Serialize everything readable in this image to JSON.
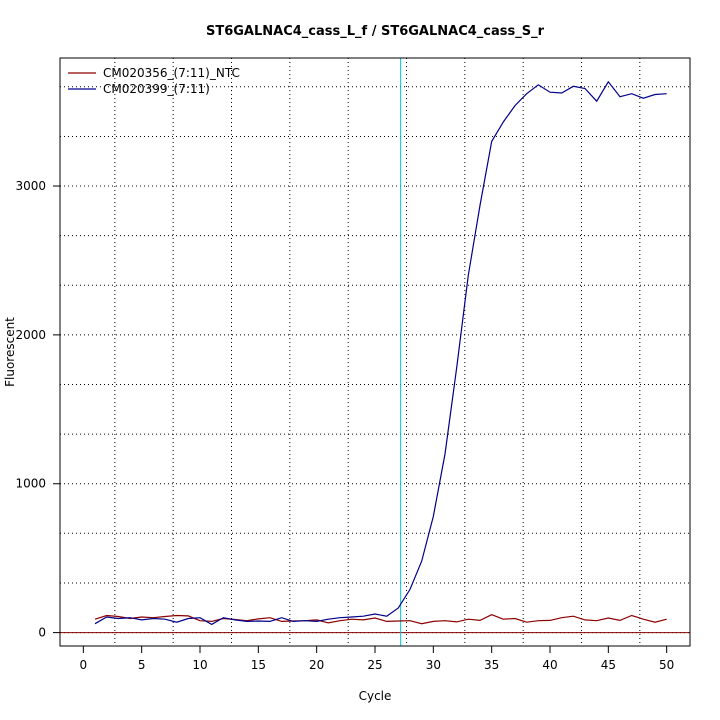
{
  "chart_data": {
    "type": "line",
    "title": "ST6GALNAC4_cass_L_f / ST6GALNAC4_cass_S_r",
    "xlabel": "Cycle",
    "ylabel": "Fluorescent",
    "xlim": [
      -2,
      52
    ],
    "ylim": [
      -90,
      3860
    ],
    "x_ticks": [
      0,
      5,
      10,
      15,
      20,
      25,
      30,
      35,
      40,
      45,
      50
    ],
    "y_ticks": [
      0,
      1000,
      2000,
      3000
    ],
    "x_grid": [
      2.7,
      7.7,
      12.7,
      17.7,
      22.7,
      27.7,
      32.7,
      37.7,
      42.7,
      47.7
    ],
    "y_grid": [
      0,
      333,
      667,
      1000,
      1333,
      1667,
      2000,
      2333,
      2667,
      3000,
      3333,
      3667
    ],
    "threshold_line": {
      "x": 27.2,
      "color": "#00c0d8"
    },
    "baseline": {
      "y": 0,
      "color": "#8b0000"
    },
    "legend_position": "top-left",
    "series": [
      {
        "name": "CM020356_(7:11)_NTC",
        "color": "#8b0000",
        "x": [
          1,
          2,
          3,
          4,
          5,
          6,
          7,
          8,
          9,
          10,
          11,
          12,
          13,
          14,
          15,
          16,
          17,
          18,
          19,
          20,
          21,
          22,
          23,
          24,
          25,
          26,
          27,
          28,
          29,
          30,
          31,
          32,
          33,
          34,
          35,
          36,
          37,
          38,
          39,
          40,
          41,
          42,
          43,
          44,
          45,
          46,
          47,
          48,
          49,
          50
        ],
        "values": [
          90,
          115,
          108,
          95,
          105,
          100,
          108,
          115,
          112,
          80,
          75,
          95,
          88,
          80,
          92,
          100,
          75,
          78,
          80,
          85,
          65,
          80,
          90,
          85,
          98,
          75,
          78,
          80,
          60,
          75,
          80,
          72,
          90,
          82,
          120,
          90,
          95,
          70,
          80,
          82,
          100,
          110,
          85,
          80,
          98,
          82,
          115,
          90,
          70,
          90
        ]
      },
      {
        "name": "CM020399_(7:11)",
        "color": "#00008b",
        "x": [
          1,
          2,
          3,
          4,
          5,
          6,
          7,
          8,
          9,
          10,
          11,
          12,
          13,
          14,
          15,
          16,
          17,
          18,
          19,
          20,
          21,
          22,
          23,
          24,
          25,
          26,
          27,
          28,
          29,
          30,
          31,
          32,
          33,
          34,
          35,
          36,
          37,
          38,
          39,
          40,
          41,
          42,
          43,
          44,
          45,
          46,
          47,
          48,
          49,
          50
        ],
        "values": [
          60,
          105,
          95,
          100,
          85,
          95,
          90,
          70,
          95,
          100,
          55,
          100,
          85,
          75,
          78,
          75,
          100,
          75,
          80,
          75,
          90,
          100,
          105,
          110,
          125,
          110,
          165,
          290,
          480,
          780,
          1200,
          1780,
          2400,
          2870,
          3300,
          3430,
          3540,
          3620,
          3680,
          3630,
          3625,
          3670,
          3655,
          3570,
          3700,
          3600,
          3620,
          3590,
          3615,
          3620
        ]
      }
    ]
  }
}
